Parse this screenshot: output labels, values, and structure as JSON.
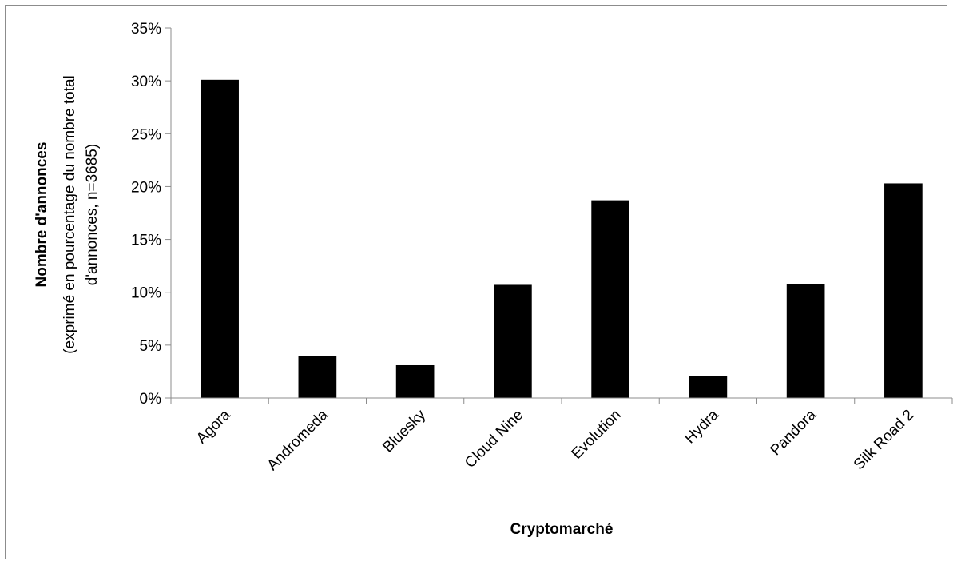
{
  "chart_data": {
    "type": "bar",
    "categories": [
      "Agora",
      "Andromeda",
      "Bluesky",
      "Cloud Nine",
      "Evolution",
      "Hydra",
      "Pandora",
      "Silk Road 2"
    ],
    "values": [
      30.1,
      4.0,
      3.1,
      10.7,
      18.7,
      2.1,
      10.8,
      20.3
    ],
    "value_unit": "%",
    "xlabel": "Cryptomarché",
    "ylabel": "Nombre d'annonces",
    "ylabel_sub_lines": [
      "(exprimé en pourcentage du nombre total",
      "d'annonces, n=3685)"
    ],
    "ylim": [
      0,
      35
    ],
    "yticks": [
      0,
      5,
      10,
      15,
      20,
      25,
      30,
      35
    ],
    "ytick_labels": [
      "0%",
      "5%",
      "10%",
      "15%",
      "20%",
      "25%",
      "30%",
      "35%"
    ],
    "bar_color": "#000000",
    "grid": false,
    "legend": "none"
  }
}
